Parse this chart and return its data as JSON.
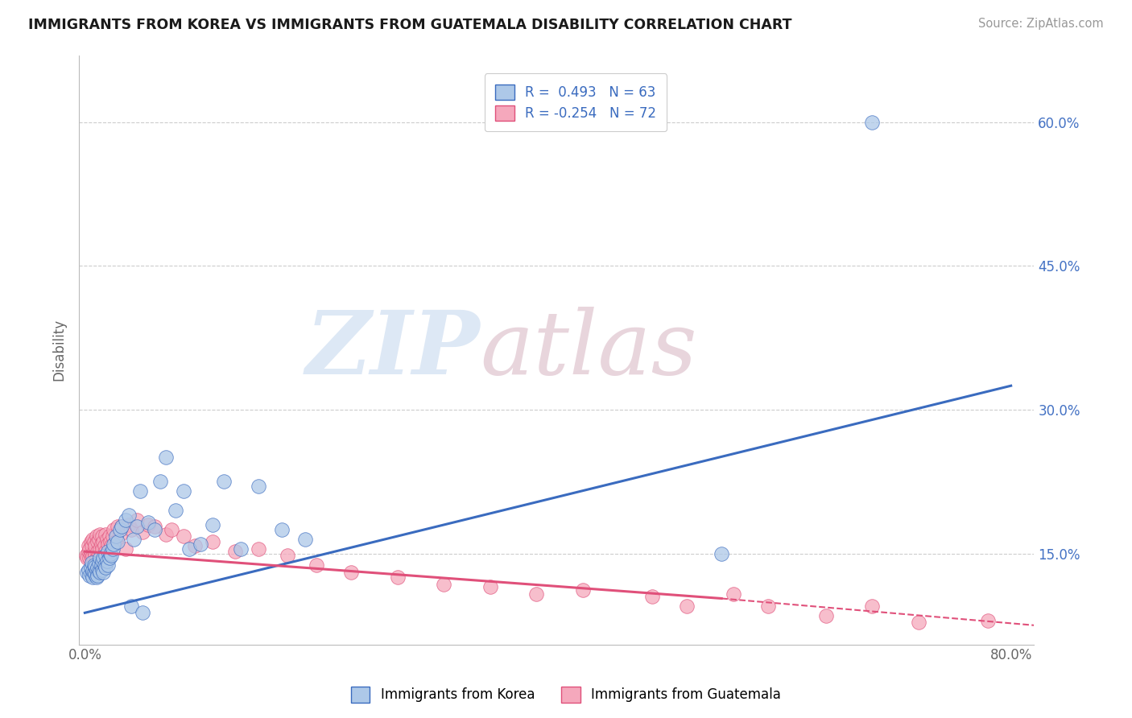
{
  "title": "IMMIGRANTS FROM KOREA VS IMMIGRANTS FROM GUATEMALA DISABILITY CORRELATION CHART",
  "source": "Source: ZipAtlas.com",
  "ylabel": "Disability",
  "korea_R": 0.493,
  "korea_N": 63,
  "guatemala_R": -0.254,
  "guatemala_N": 72,
  "xlim": [
    -0.005,
    0.82
  ],
  "ylim": [
    0.055,
    0.67
  ],
  "ytick_positions": [
    0.15,
    0.3,
    0.45,
    0.6
  ],
  "ytick_labels": [
    "15.0%",
    "30.0%",
    "45.0%",
    "60.0%"
  ],
  "korea_color": "#adc8e8",
  "guatemala_color": "#f5a8bc",
  "korea_line_color": "#3a6bbf",
  "guatemala_line_color": "#e0507a",
  "background_color": "#ffffff",
  "watermark_zip": "ZIP",
  "watermark_atlas": "atlas",
  "legend_korea": "Immigrants from Korea",
  "legend_guatemala": "Immigrants from Guatemala",
  "korea_trend": [
    0.0,
    0.8,
    0.088,
    0.325
  ],
  "guatemala_trend_solid": [
    0.0,
    0.55,
    0.152,
    0.103
  ],
  "guatemala_trend_dashed": [
    0.55,
    0.82,
    0.103,
    0.075
  ],
  "korea_scatter_x": [
    0.002,
    0.003,
    0.004,
    0.005,
    0.006,
    0.006,
    0.007,
    0.007,
    0.008,
    0.008,
    0.009,
    0.009,
    0.01,
    0.01,
    0.011,
    0.011,
    0.012,
    0.012,
    0.013,
    0.013,
    0.014,
    0.015,
    0.015,
    0.016,
    0.016,
    0.017,
    0.018,
    0.018,
    0.019,
    0.02,
    0.02,
    0.021,
    0.022,
    0.023,
    0.024,
    0.025,
    0.027,
    0.028,
    0.03,
    0.032,
    0.035,
    0.038,
    0.04,
    0.042,
    0.045,
    0.048,
    0.05,
    0.055,
    0.06,
    0.065,
    0.07,
    0.078,
    0.085,
    0.09,
    0.1,
    0.11,
    0.12,
    0.135,
    0.15,
    0.17,
    0.19,
    0.55,
    0.68
  ],
  "korea_scatter_y": [
    0.13,
    0.133,
    0.127,
    0.135,
    0.128,
    0.14,
    0.125,
    0.132,
    0.13,
    0.138,
    0.128,
    0.136,
    0.125,
    0.133,
    0.127,
    0.135,
    0.132,
    0.14,
    0.13,
    0.145,
    0.138,
    0.133,
    0.142,
    0.13,
    0.145,
    0.138,
    0.135,
    0.148,
    0.142,
    0.138,
    0.152,
    0.145,
    0.15,
    0.148,
    0.155,
    0.16,
    0.168,
    0.162,
    0.175,
    0.178,
    0.185,
    0.19,
    0.095,
    0.165,
    0.178,
    0.215,
    0.088,
    0.182,
    0.175,
    0.225,
    0.25,
    0.195,
    0.215,
    0.155,
    0.16,
    0.18,
    0.225,
    0.155,
    0.22,
    0.175,
    0.165,
    0.15,
    0.6
  ],
  "guatemala_scatter_x": [
    0.001,
    0.002,
    0.003,
    0.003,
    0.004,
    0.004,
    0.005,
    0.005,
    0.006,
    0.006,
    0.007,
    0.007,
    0.008,
    0.008,
    0.009,
    0.009,
    0.01,
    0.01,
    0.011,
    0.011,
    0.012,
    0.012,
    0.013,
    0.013,
    0.014,
    0.015,
    0.015,
    0.016,
    0.017,
    0.018,
    0.018,
    0.019,
    0.02,
    0.021,
    0.022,
    0.023,
    0.024,
    0.025,
    0.027,
    0.028,
    0.03,
    0.032,
    0.035,
    0.038,
    0.04,
    0.045,
    0.05,
    0.055,
    0.06,
    0.07,
    0.075,
    0.085,
    0.095,
    0.11,
    0.13,
    0.15,
    0.175,
    0.2,
    0.23,
    0.27,
    0.31,
    0.35,
    0.39,
    0.43,
    0.49,
    0.52,
    0.56,
    0.59,
    0.64,
    0.68,
    0.72,
    0.78
  ],
  "guatemala_scatter_y": [
    0.148,
    0.145,
    0.152,
    0.158,
    0.145,
    0.155,
    0.148,
    0.162,
    0.145,
    0.158,
    0.148,
    0.165,
    0.152,
    0.162,
    0.148,
    0.158,
    0.145,
    0.168,
    0.152,
    0.162,
    0.148,
    0.165,
    0.155,
    0.17,
    0.16,
    0.155,
    0.168,
    0.162,
    0.158,
    0.152,
    0.17,
    0.165,
    0.16,
    0.168,
    0.162,
    0.158,
    0.168,
    0.175,
    0.162,
    0.178,
    0.17,
    0.178,
    0.155,
    0.18,
    0.175,
    0.185,
    0.172,
    0.18,
    0.178,
    0.17,
    0.175,
    0.168,
    0.158,
    0.162,
    0.152,
    0.155,
    0.148,
    0.138,
    0.13,
    0.125,
    0.118,
    0.115,
    0.108,
    0.112,
    0.105,
    0.095,
    0.108,
    0.095,
    0.085,
    0.095,
    0.078,
    0.08
  ]
}
